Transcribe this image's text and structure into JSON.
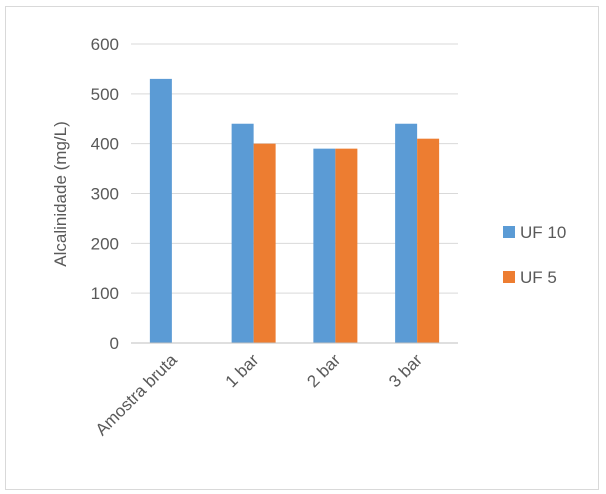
{
  "chart_data": {
    "type": "bar",
    "categories": [
      "Amostra bruta",
      "1 bar",
      "2 bar",
      "3 bar"
    ],
    "series": [
      {
        "name": "UF 10",
        "color": "#5b9bd5",
        "values": [
          530,
          440,
          390,
          440
        ]
      },
      {
        "name": "UF 5",
        "color": "#ed7d31",
        "values": [
          null,
          400,
          390,
          410
        ]
      }
    ],
    "ylabel": "Alcalinidade (mg/L)",
    "xlabel": "",
    "ylim": [
      0,
      600
    ],
    "yticks": [
      0,
      100,
      200,
      300,
      400,
      500,
      600
    ],
    "grid": true,
    "legend_position": "right",
    "x_tick_rotation_deg": -45
  }
}
